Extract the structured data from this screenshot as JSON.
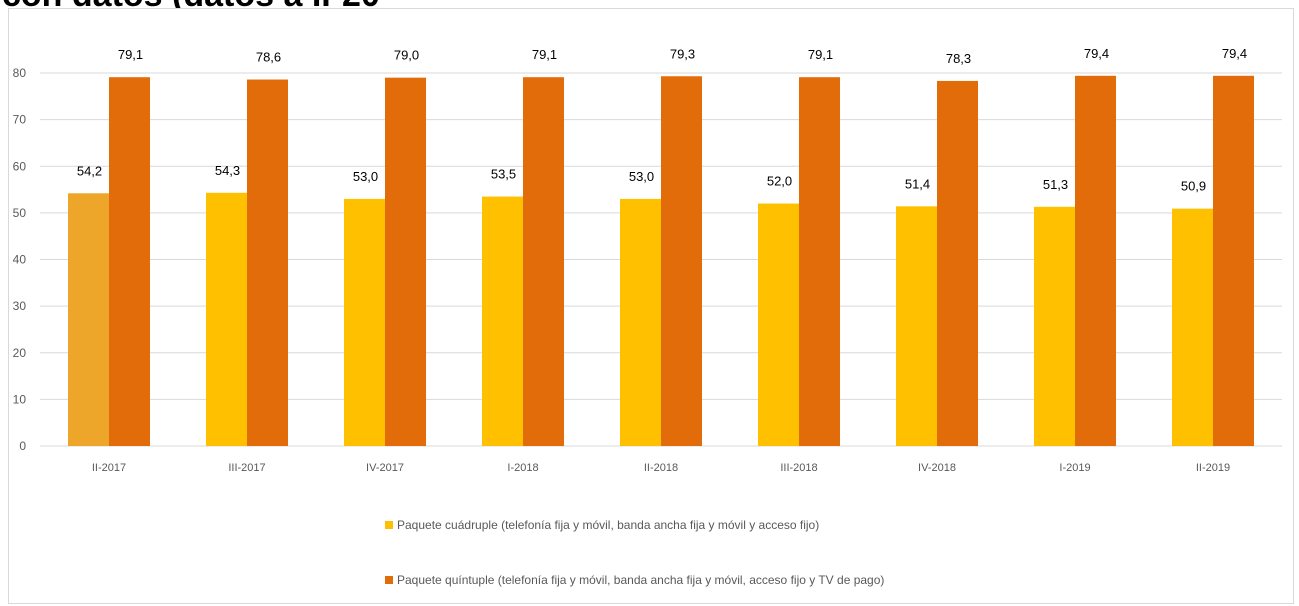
{
  "title": "con datos (datos a II-20",
  "colors": {
    "quad": "#FFC000",
    "quad_first": "#EDA52A",
    "quint": "#E36C0A",
    "grid": "#d9d9d9",
    "tick_text": "#595959",
    "label_text": "#000000"
  },
  "chart_data": {
    "type": "bar",
    "categories": [
      "II-2017",
      "III-2017",
      "IV-2017",
      "I-2018",
      "II-2018",
      "III-2018",
      "IV-2018",
      "I-2019",
      "II-2019"
    ],
    "series": [
      {
        "name": "Paquete cuádruple (telefonía fija y móvil, banda ancha fija y móvil y acceso fijo)",
        "values": [
          54.2,
          54.3,
          53.0,
          53.5,
          53.0,
          52.0,
          51.4,
          51.3,
          50.9
        ],
        "labels": [
          "54,2",
          "54,3",
          "53,0",
          "53,5",
          "53,0",
          "52,0",
          "51,4",
          "51,3",
          "50,9"
        ]
      },
      {
        "name": "Paquete quíntuple (telefonía fija y móvil, banda ancha fija y móvil, acceso fijo y TV de pago)",
        "values": [
          79.1,
          78.6,
          79.0,
          79.1,
          79.3,
          79.1,
          78.3,
          79.4,
          79.4
        ],
        "labels": [
          "79,1",
          "78,6",
          "79,0",
          "79,1",
          "79,3",
          "79,1",
          "78,3",
          "79,4",
          "79,4"
        ]
      }
    ],
    "ylim": [
      0,
      80
    ],
    "yticks": [
      0,
      10,
      20,
      30,
      40,
      50,
      60,
      70,
      80
    ],
    "grid": true,
    "legend_position": "bottom",
    "xlabel": "",
    "ylabel": ""
  }
}
